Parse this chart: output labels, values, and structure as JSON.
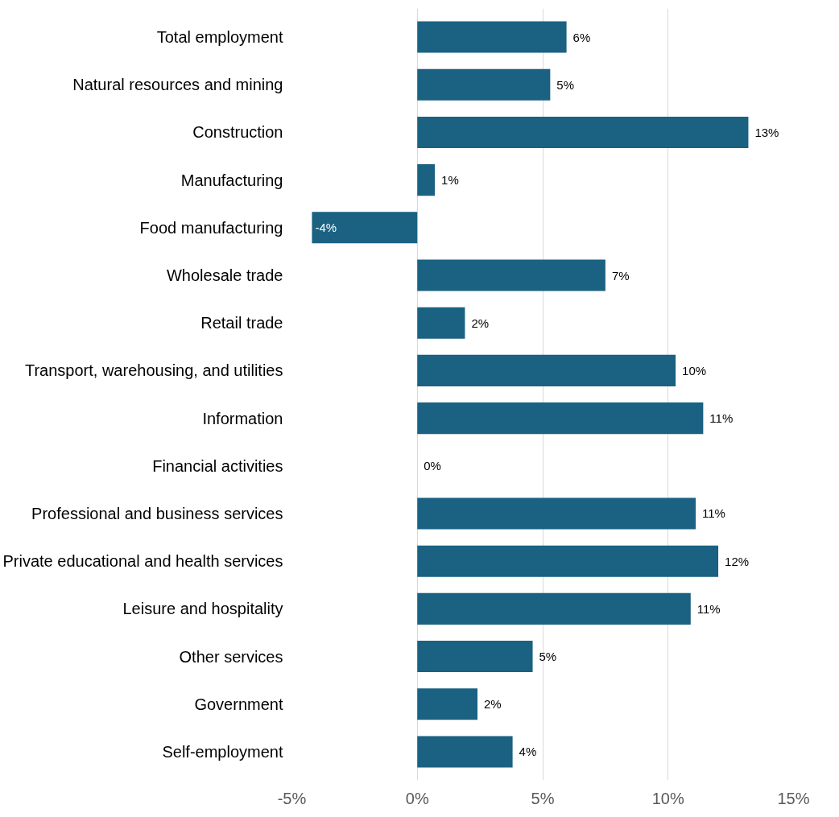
{
  "chart_data": {
    "type": "bar",
    "orientation": "horizontal",
    "categories": [
      "Total employment",
      "Natural resources and mining",
      "Construction",
      "Manufacturing",
      "Food manufacturing",
      "Wholesale trade",
      "Retail trade",
      "Transport, warehousing, and utilities",
      "Information",
      "Financial activities",
      "Professional and business services",
      "Private educational and health services",
      "Leisure and hospitality",
      "Other services",
      "Government",
      "Self-employment"
    ],
    "values": [
      5.95,
      5.3,
      13.2,
      0.7,
      -4.2,
      7.5,
      1.9,
      10.3,
      11.4,
      0,
      11.1,
      12.0,
      10.9,
      4.6,
      2.4,
      3.8
    ],
    "value_labels": [
      "6%",
      "5%",
      "13%",
      "1%",
      "-4%",
      "7%",
      "2%",
      "10%",
      "11%",
      "0%",
      "11%",
      "12%",
      "11%",
      "5%",
      "2%",
      "4%"
    ],
    "color": "#1a6182",
    "xlim": [
      -5,
      15
    ],
    "xticks": [
      {
        "value": -5,
        "label": "-5%"
      },
      {
        "value": 0,
        "label": "0%"
      },
      {
        "value": 5,
        "label": "5%"
      },
      {
        "value": 10,
        "label": "10%"
      },
      {
        "value": 15,
        "label": "15%"
      }
    ],
    "grid": "x"
  }
}
